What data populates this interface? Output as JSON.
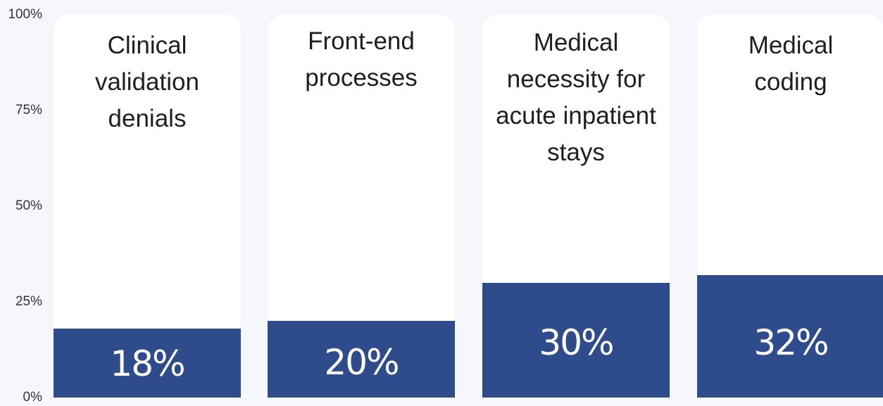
{
  "chart_data": {
    "type": "bar",
    "title": "",
    "xlabel": "",
    "ylabel": "",
    "ylim": [
      0,
      100
    ],
    "y_ticks": [
      "0%",
      "25%",
      "50%",
      "75%",
      "100%"
    ],
    "y_tick_values": [
      0,
      25,
      50,
      75,
      100
    ],
    "categories": [
      "Clinical validation denials",
      "Front-end processes",
      "Medical necessity for acute inpatient stays",
      "Medical coding"
    ],
    "category_lines": [
      [
        "Clinical",
        "validation",
        "denials"
      ],
      [
        "Front-end",
        "processes"
      ],
      [
        "Medical",
        "necessity for",
        "acute inpatient",
        "stays"
      ],
      [
        "Medical",
        "coding"
      ]
    ],
    "values": [
      18,
      20,
      30,
      32
    ],
    "value_labels": [
      "18%",
      "20%",
      "30%",
      "32%"
    ],
    "bar_color": "#2e4c8b",
    "column_background": "#ffffff",
    "grid": false,
    "legend": "none"
  }
}
